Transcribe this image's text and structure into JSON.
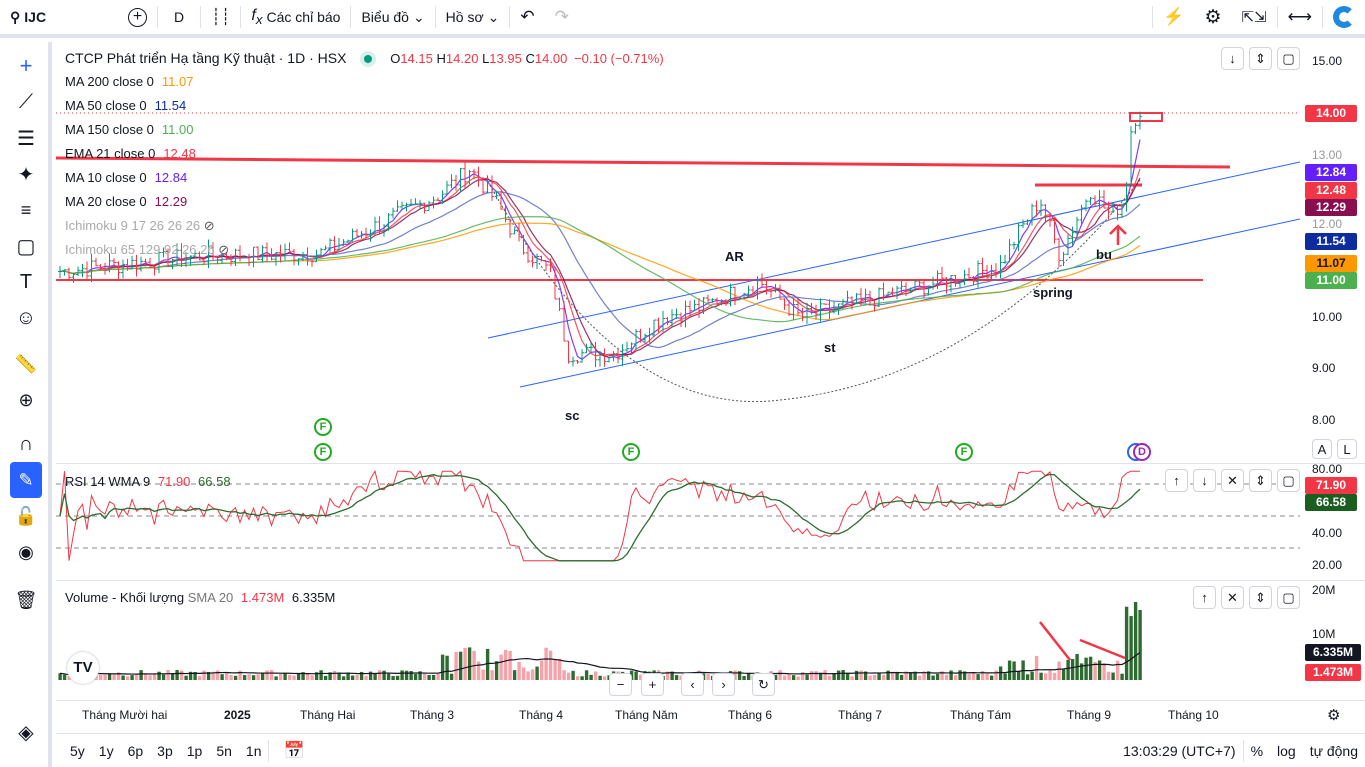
{
  "toolbar": {
    "symbol": "IJC",
    "interval": "D",
    "indicators": "Các chỉ báo",
    "chart_menu": "Biểu đồ",
    "profile_menu": "Hồ sơ"
  },
  "header": {
    "title": "CTCP Phát triển Hạ tầng Kỹ thuật · 1D · HSX",
    "o_label": "O",
    "o": "14.15",
    "h_label": "H",
    "h": "14.20",
    "l_label": "L",
    "l": "13.95",
    "c_label": "C",
    "c": "14.00",
    "change": "−0.10 (−0.71%)"
  },
  "indicators": [
    {
      "label": "MA 200 close 0",
      "value": "11.07",
      "color": "#ff9800"
    },
    {
      "label": "MA 50 close 0",
      "value": "11.54",
      "color": "#0d2d9e"
    },
    {
      "label": "MA 150 close 0",
      "value": "11.00",
      "color": "#4caf50"
    },
    {
      "label": "EMA 21 close 0",
      "value": "12.48",
      "color": "#f23645"
    },
    {
      "label": "MA 10 close 0",
      "value": "12.84",
      "color": "#651fff"
    },
    {
      "label": "MA 20 close 0",
      "value": "12.29",
      "color": "#880e4f"
    },
    {
      "label": "Ichimoku 9 17 26 26 26",
      "value": "",
      "color": "#aaaaaa"
    },
    {
      "label": "Ichimoku 65 129 92 26 26",
      "value": "",
      "color": "#aaaaaa"
    }
  ],
  "price_axis": [
    "15.00",
    "13.00",
    "12.00",
    "10.00",
    "9.00",
    "8.00"
  ],
  "price_tags": [
    {
      "value": "14.00",
      "color": "#f23645"
    },
    {
      "value": "12.84",
      "color": "#651fff"
    },
    {
      "value": "12.48",
      "color": "#f23645"
    },
    {
      "value": "12.29",
      "color": "#880e4f"
    },
    {
      "value": "11.54",
      "color": "#0d2d9e"
    },
    {
      "value": "11.07",
      "color": "#ff9800",
      "text": "#131722"
    },
    {
      "value": "11.00",
      "color": "#4caf50"
    }
  ],
  "annotations": {
    "ar": "AR",
    "sc": "sc",
    "st": "st",
    "spring": "spring",
    "bu": "bu"
  },
  "markers": {
    "f": "F",
    "d": "D"
  },
  "scale_buttons": {
    "auto": "A",
    "log": "L"
  },
  "rsi": {
    "label": "RSI 14 WMA 9",
    "value": "71.90",
    "wma": "66.58",
    "axis": [
      "80.00",
      "40.00",
      "20.00"
    ]
  },
  "volume": {
    "label": "Volume - Khối lượng",
    "sma_label": "SMA 20",
    "value": "1.473M",
    "sma": "6.335M",
    "axis": [
      "20M",
      "10M"
    ]
  },
  "time_axis": [
    "Tháng Mười hai",
    "2025",
    "Tháng Hai",
    "Tháng 3",
    "Tháng 4",
    "Tháng Năm",
    "Tháng 6",
    "Tháng 7",
    "Tháng Tám",
    "Tháng 9",
    "Tháng 10"
  ],
  "ranges": [
    "5y",
    "1y",
    "6p",
    "3p",
    "1p",
    "5n",
    "1n"
  ],
  "status": {
    "time": "13:03:29 (UTC+7)",
    "percent": "%",
    "log": "log",
    "auto": "tự động"
  },
  "colors": {
    "up": "#2e6b30",
    "down": "#f23645",
    "up_candle": "#089981",
    "accent": "#2962ff"
  }
}
